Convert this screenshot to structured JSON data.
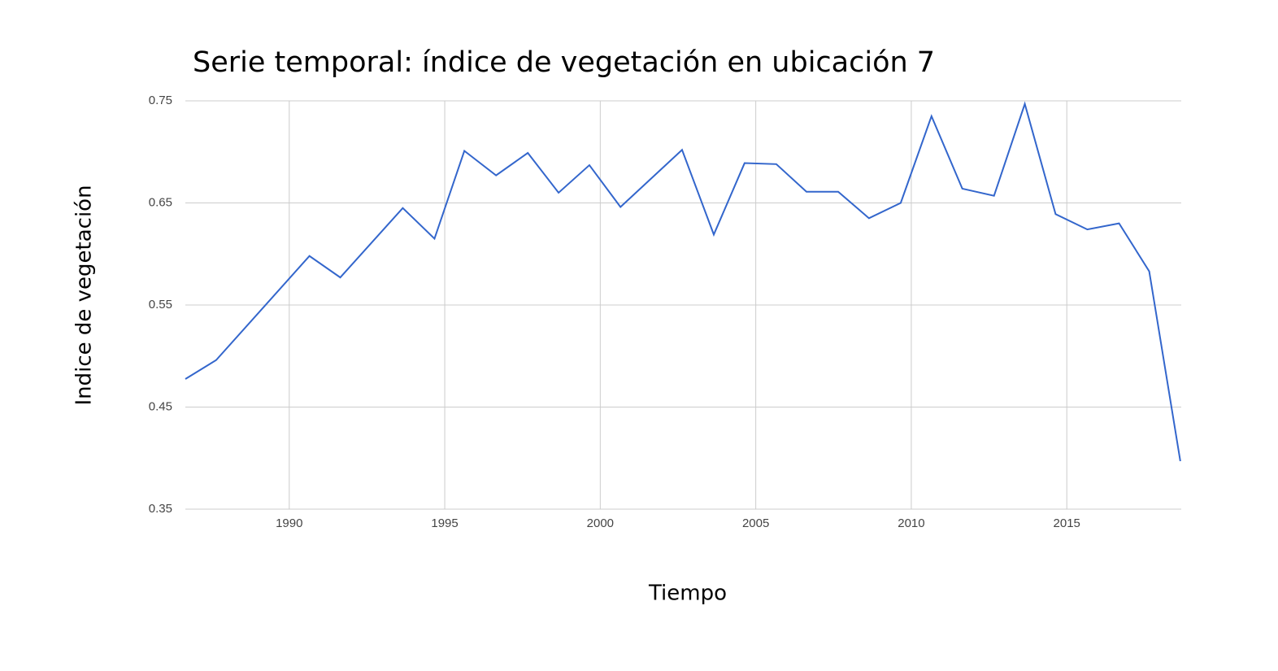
{
  "chart_data": {
    "type": "line",
    "title": "Serie temporal: índice de vegetación en ubicación 7",
    "x_label": "Tiempo",
    "y_label": "Indice de vegetación",
    "x": [
      1986.66,
      1987.65,
      1990.65,
      1991.64,
      1993.65,
      1994.67,
      1995.63,
      1996.65,
      1997.67,
      1998.66,
      1999.65,
      2000.65,
      2002.63,
      2003.65,
      2004.64,
      2005.66,
      2006.63,
      2007.65,
      2008.64,
      2009.66,
      2010.65,
      2011.64,
      2012.66,
      2013.65,
      2014.64,
      2015.66,
      2016.68,
      2017.65,
      2018.65
    ],
    "series": [
      {
        "color": "#3366cc",
        "values": [
          0.4775,
          0.496,
          0.598,
          0.577,
          0.645,
          0.615,
          0.701,
          0.677,
          0.699,
          0.66,
          0.687,
          0.646,
          0.702,
          0.619,
          0.689,
          0.688,
          0.661,
          0.661,
          0.635,
          0.65,
          0.735,
          0.664,
          0.657,
          0.747,
          0.639,
          0.624,
          0.63,
          0.583,
          0.397
        ]
      }
    ],
    "xlim": [
      1986.66,
      2018.68
    ],
    "xticks": [
      1990,
      1995,
      2000,
      2005,
      2010,
      2015
    ],
    "ylim": [
      0.35,
      0.75
    ],
    "yticks": [
      0.35,
      0.45,
      0.55,
      0.65,
      0.75
    ],
    "grid": true
  }
}
